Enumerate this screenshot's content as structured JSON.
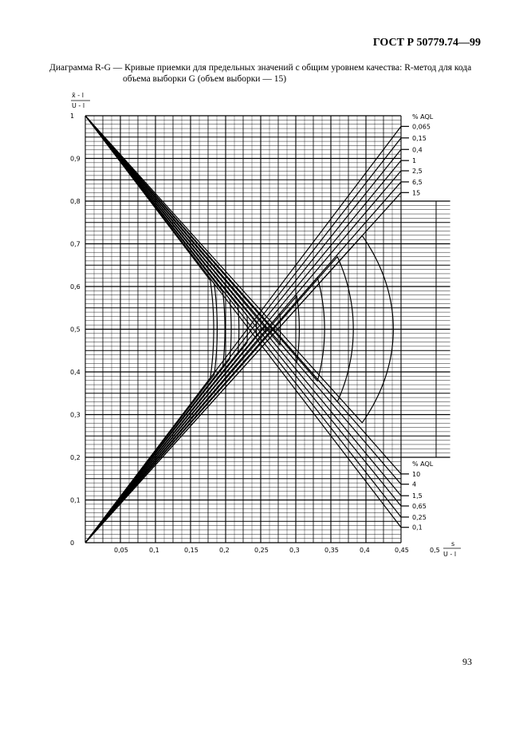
{
  "header": {
    "standard": "ГОСТ Р 50779.74—99"
  },
  "caption": {
    "line1": "Диаграмма R-G — Кривые приемки для предельных значений с общим уровнем качества: R-метод для кода",
    "line2": "объема выборки G (объем выборки — 15)"
  },
  "page_number": "93",
  "chart_data": {
    "type": "line",
    "ylabel_num": "x̄ - l",
    "ylabel_den": "U - l",
    "xlabel_num": "s",
    "xlabel_den": "U - l",
    "xlim": [
      0,
      0.45
    ],
    "ylim": [
      0,
      1
    ],
    "grid": true,
    "x_ticks": [
      "0,05",
      "0,1",
      "0,15",
      "0,2",
      "0,25",
      "0,3",
      "0,35",
      "0,4",
      "0,45",
      "0,5"
    ],
    "x_tick_values": [
      0.05,
      0.1,
      0.15,
      0.2,
      0.25,
      0.3,
      0.35,
      0.4,
      0.45,
      0.5
    ],
    "y_ticks": [
      "0",
      "0,1",
      "0,2",
      "0,3",
      "0,4",
      "0,5",
      "0,6",
      "0,7",
      "0,8",
      "0,9",
      "1"
    ],
    "y_tick_values": [
      0,
      0.1,
      0.2,
      0.3,
      0.4,
      0.5,
      0.6,
      0.7,
      0.8,
      0.9,
      1
    ],
    "legend_upper_title": "% AQL",
    "legend_lower_title": "% AQL",
    "curves": [
      {
        "aql": "0,065",
        "nose_s": 0.183,
        "end_y": 0.975,
        "label_side": "upper"
      },
      {
        "aql": "0,1",
        "nose_s": 0.188,
        "end_y": 0.964,
        "label_side": "lower"
      },
      {
        "aql": "0,15",
        "nose_s": 0.199,
        "end_y": 0.948,
        "label_side": "upper"
      },
      {
        "aql": "0,25",
        "nose_s": 0.208,
        "end_y": 0.94,
        "label_side": "lower"
      },
      {
        "aql": "0,4",
        "nose_s": 0.219,
        "end_y": 0.921,
        "label_side": "upper"
      },
      {
        "aql": "0,65",
        "nose_s": 0.231,
        "end_y": 0.914,
        "label_side": "lower"
      },
      {
        "aql": "1",
        "nose_s": 0.244,
        "end_y": 0.895,
        "label_side": "upper"
      },
      {
        "aql": "1,5",
        "nose_s": 0.257,
        "end_y": 0.89,
        "label_side": "lower"
      },
      {
        "aql": "2,5",
        "nose_s": 0.278,
        "end_y": 0.871,
        "label_side": "upper"
      },
      {
        "aql": "4",
        "nose_s": 0.305,
        "end_y": 0.863,
        "label_side": "lower"
      },
      {
        "aql": "6,5",
        "nose_s": 0.341,
        "end_y": 0.845,
        "label_side": "upper"
      },
      {
        "aql": "10",
        "nose_s": 0.382,
        "end_y": 0.839,
        "label_side": "lower"
      },
      {
        "aql": "15",
        "nose_s": 0.439,
        "end_y": 0.82,
        "label_side": "upper"
      }
    ]
  }
}
